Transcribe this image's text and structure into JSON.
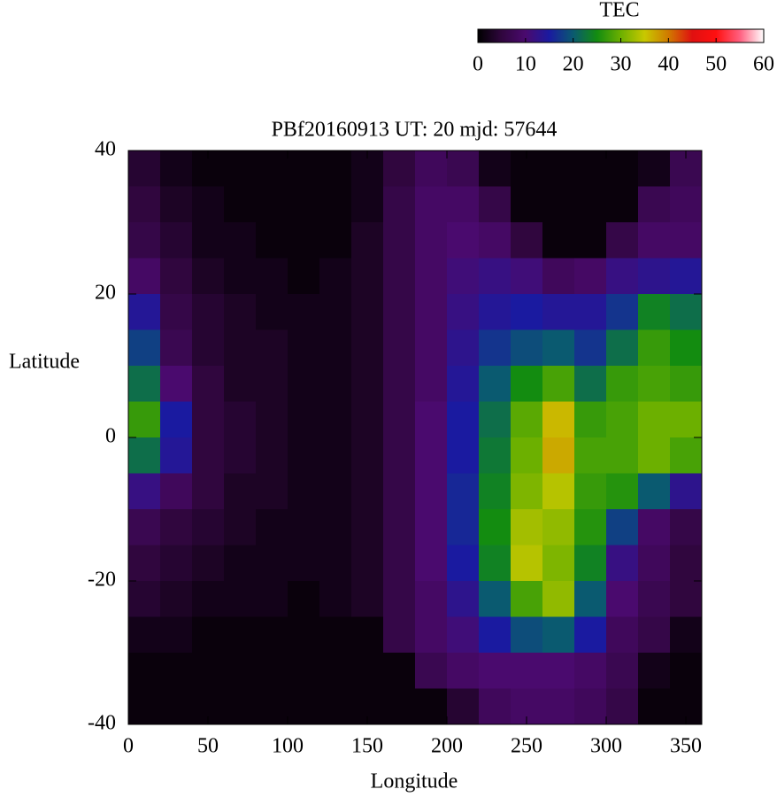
{
  "chart_data": {
    "type": "heatmap",
    "title": "PBf20160913  UT: 20  mjd: 57644",
    "x_label": "Longitude",
    "y_label": "Latitude",
    "colorbar_label": "TEC",
    "xlim": [
      0,
      360
    ],
    "xticks": [
      0,
      50,
      100,
      150,
      200,
      250,
      300,
      350
    ],
    "ylim": [
      -40,
      40
    ],
    "yticks": [
      -40,
      -20,
      0,
      20,
      40
    ],
    "clim": [
      0,
      60
    ],
    "cticks": [
      0,
      10,
      20,
      30,
      40,
      50,
      60
    ],
    "colormap": [
      "#000000",
      "#30063e",
      "#4a0a6e",
      "#1a1aa0",
      "#0a5a70",
      "#138c10",
      "#6cb000",
      "#c8c800",
      "#d07a00",
      "#e01010",
      "#ff1010",
      "#ff6080",
      "#ffffff"
    ],
    "x": [
      10,
      30,
      50,
      70,
      90,
      110,
      130,
      150,
      170,
      190,
      210,
      230,
      250,
      270,
      290,
      310,
      330,
      350
    ],
    "y": [
      37.5,
      32.5,
      27.5,
      22.5,
      17.5,
      12.5,
      7.5,
      2.5,
      -2.5,
      -7.5,
      -12.5,
      -17.5,
      -22.5,
      -27.5,
      -32.5,
      -37.5
    ],
    "z": [
      [
        4,
        2,
        1,
        1,
        1,
        1,
        1,
        2,
        5,
        8,
        7,
        2,
        1,
        1,
        1,
        1,
        2,
        7
      ],
      [
        5,
        3,
        2,
        1,
        1,
        1,
        1,
        2,
        6,
        9,
        9,
        6,
        1,
        1,
        1,
        1,
        7,
        8
      ],
      [
        6,
        4,
        2,
        2,
        1,
        1,
        1,
        3,
        6,
        9,
        10,
        9,
        5,
        1,
        1,
        6,
        9,
        9
      ],
      [
        9,
        5,
        3,
        2,
        2,
        1,
        2,
        3,
        6,
        9,
        11,
        12,
        11,
        8,
        9,
        12,
        13,
        14
      ],
      [
        14,
        6,
        4,
        3,
        2,
        2,
        2,
        3,
        6,
        9,
        12,
        14,
        15,
        14,
        14,
        17,
        24,
        22
      ],
      [
        18,
        7,
        4,
        3,
        3,
        2,
        2,
        3,
        6,
        9,
        13,
        17,
        19,
        20,
        17,
        22,
        27,
        25
      ],
      [
        22,
        10,
        5,
        3,
        3,
        2,
        2,
        3,
        6,
        9,
        14,
        20,
        25,
        28,
        22,
        27,
        28,
        27
      ],
      [
        27,
        15,
        5,
        4,
        3,
        2,
        2,
        3,
        6,
        10,
        15,
        22,
        29,
        36,
        27,
        28,
        30,
        30
      ],
      [
        22,
        14,
        5,
        4,
        3,
        2,
        2,
        3,
        6,
        10,
        15,
        23,
        30,
        37,
        28,
        28,
        30,
        28
      ],
      [
        12,
        8,
        5,
        3,
        3,
        2,
        2,
        3,
        6,
        10,
        16,
        24,
        31,
        34,
        27,
        26,
        20,
        13
      ],
      [
        7,
        5,
        4,
        3,
        2,
        2,
        2,
        3,
        6,
        10,
        16,
        25,
        33,
        32,
        26,
        18,
        9,
        6
      ],
      [
        5,
        4,
        3,
        2,
        2,
        2,
        2,
        3,
        6,
        10,
        15,
        24,
        34,
        31,
        24,
        12,
        8,
        5
      ],
      [
        4,
        3,
        2,
        2,
        2,
        1,
        2,
        3,
        6,
        9,
        13,
        20,
        28,
        32,
        20,
        10,
        7,
        5
      ],
      [
        2,
        2,
        1,
        1,
        1,
        1,
        1,
        1,
        6,
        9,
        11,
        15,
        19,
        20,
        15,
        8,
        6,
        2
      ],
      [
        1,
        1,
        1,
        1,
        1,
        1,
        1,
        1,
        1,
        7,
        9,
        10,
        10,
        10,
        9,
        7,
        2,
        1
      ],
      [
        1,
        1,
        1,
        1,
        1,
        1,
        1,
        1,
        1,
        1,
        4,
        8,
        9,
        9,
        8,
        6,
        1,
        1
      ]
    ]
  }
}
